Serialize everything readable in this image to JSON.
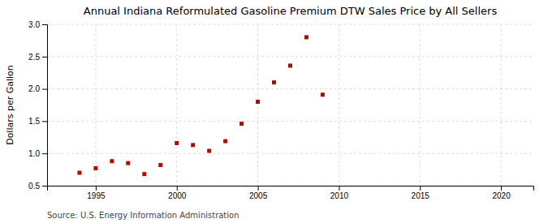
{
  "chart_data": {
    "type": "scatter",
    "title": "Annual Indiana Reformulated Gasoline Premium DTW Sales Price by All Sellers",
    "ylabel": "Dollars per Gallon",
    "annotation": "Source: U.S. Energy Information Administration",
    "x": [
      1994,
      1995,
      1996,
      1997,
      1998,
      1999,
      2000,
      2001,
      2002,
      2003,
      2004,
      2005,
      2006,
      2007,
      2008,
      2009
    ],
    "values": [
      0.7,
      0.77,
      0.88,
      0.85,
      0.68,
      0.82,
      1.16,
      1.13,
      1.04,
      1.19,
      1.46,
      1.8,
      2.1,
      2.36,
      2.8,
      1.91
    ],
    "color": "#c00000",
    "marker": "square",
    "xlim": [
      1992,
      2022
    ],
    "xticks": [
      1995,
      2000,
      2005,
      2010,
      2015,
      2020
    ],
    "ylim": [
      0.5,
      3.0
    ],
    "yticks": [
      0.5,
      {
        "value": 1.0,
        "label": "1.0"
      },
      1.5,
      {
        "value": 2.0,
        "label": "2.0"
      },
      2.5,
      {
        "value": 3.0,
        "label": "3.0"
      }
    ],
    "grid": true
  }
}
